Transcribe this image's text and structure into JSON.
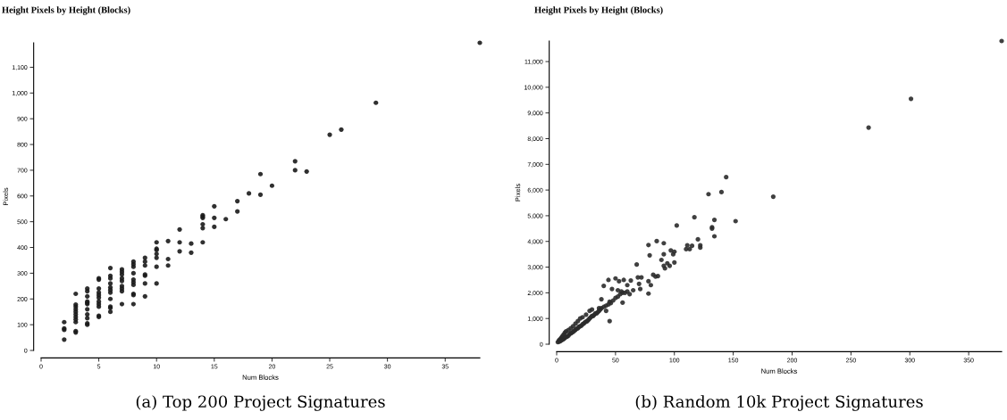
{
  "chart_data": [
    {
      "type": "scatter",
      "title": "Height Pixels by Height (Blocks)",
      "xlabel": "Num Blocks",
      "ylabel": "Pixels",
      "annotations": [
        "(a) Top 200 Project Signatures"
      ],
      "marker": "circle",
      "grid": false,
      "xlim": [
        0,
        38
      ],
      "ylim": [
        0,
        1195
      ],
      "xticks": [
        0,
        5,
        10,
        15,
        20,
        25,
        30,
        35
      ],
      "yticks": [
        0,
        100,
        200,
        300,
        400,
        500,
        600,
        700,
        800,
        900,
        {
          "value": 1000,
          "label": "1,000"
        },
        {
          "value": 1100,
          "label": "1,100"
        }
      ],
      "series": [
        {
          "color": "#1a1a1a",
          "x": [
            2,
            2,
            2,
            2,
            3,
            3,
            3,
            3,
            3,
            3,
            3,
            3,
            3,
            3,
            3,
            4,
            4,
            4,
            4,
            4,
            4,
            4,
            4,
            4,
            4,
            4,
            5,
            5,
            5,
            5,
            5,
            5,
            5,
            5,
            5,
            5,
            5,
            6,
            6,
            6,
            6,
            6,
            6,
            6,
            6,
            6,
            6,
            6,
            7,
            7,
            7,
            7,
            7,
            7,
            7,
            7,
            7,
            8,
            8,
            8,
            8,
            8,
            8,
            8,
            8,
            8,
            8,
            9,
            9,
            9,
            9,
            9,
            9,
            9,
            10,
            10,
            10,
            10,
            10,
            10,
            10,
            11,
            11,
            11,
            12,
            12,
            12,
            13,
            13,
            14,
            14,
            14,
            14,
            14,
            14,
            15,
            15,
            15,
            16,
            17,
            17,
            18,
            19,
            19,
            20,
            22,
            22,
            23,
            25,
            26,
            29,
            38
          ],
          "values": [
            110,
            85,
            80,
            42,
            220,
            178,
            170,
            160,
            150,
            140,
            130,
            120,
            110,
            75,
            70,
            240,
            230,
            210,
            190,
            185,
            180,
            160,
            140,
            125,
            105,
            100,
            280,
            275,
            240,
            225,
            215,
            205,
            190,
            180,
            170,
            135,
            130,
            320,
            290,
            280,
            260,
            245,
            235,
            225,
            200,
            170,
            165,
            150,
            315,
            305,
            295,
            280,
            270,
            250,
            240,
            230,
            180,
            345,
            335,
            325,
            300,
            275,
            265,
            255,
            220,
            215,
            180,
            360,
            345,
            330,
            295,
            290,
            260,
            210,
            420,
            395,
            390,
            375,
            360,
            325,
            260,
            425,
            355,
            330,
            470,
            420,
            385,
            415,
            380,
            525,
            520,
            515,
            490,
            475,
            420,
            560,
            515,
            480,
            510,
            580,
            540,
            610,
            685,
            605,
            640,
            735,
            700,
            695,
            838,
            858,
            962,
            1195
          ]
        }
      ]
    },
    {
      "type": "scatter",
      "title": "Height Pixels by Height (Blocks)",
      "xlabel": "Num Blocks",
      "ylabel": "Pixels",
      "annotations": [
        "(b) Random 10k Project Signatures"
      ],
      "marker": "circle",
      "grid": false,
      "xlim": [
        0,
        378
      ],
      "ylim": [
        0,
        11800
      ],
      "xticks": [
        0,
        50,
        100,
        150,
        200,
        250,
        300,
        350
      ],
      "yticks": [
        0,
        {
          "value": 1000,
          "label": "1,000"
        },
        {
          "value": 2000,
          "label": "2,000"
        },
        {
          "value": 3000,
          "label": "3,000"
        },
        {
          "value": 4000,
          "label": "4,000"
        },
        {
          "value": 5000,
          "label": "5,000"
        },
        {
          "value": 6000,
          "label": "6,000"
        },
        {
          "value": 7000,
          "label": "7,000"
        },
        {
          "value": 8000,
          "label": "8,000"
        },
        {
          "value": 9000,
          "label": "9,000"
        },
        {
          "value": 10000,
          "label": "10,000"
        },
        {
          "value": 11000,
          "label": "11,000"
        }
      ],
      "series": [
        {
          "color": "#2b2b2b",
          "x": [
            1,
            2,
            2,
            3,
            3,
            4,
            4,
            5,
            5,
            6,
            6,
            7,
            7,
            8,
            8,
            9,
            10,
            10,
            11,
            12,
            12,
            13,
            14,
            14,
            15,
            16,
            16,
            17,
            18,
            18,
            19,
            20,
            20,
            21,
            22,
            22,
            23,
            24,
            25,
            25,
            26,
            27,
            28,
            28,
            29,
            30,
            30,
            31,
            32,
            33,
            34,
            35,
            36,
            37,
            38,
            40,
            42,
            44,
            45,
            46,
            48,
            50,
            52,
            54,
            56,
            60,
            62,
            265,
            301,
            378,
            184,
            144,
            129,
            140,
            152,
            134,
            132,
            132,
            134,
            117,
            102,
            120,
            122,
            122,
            111,
            113,
            115,
            110,
            85,
            78,
            91,
            97,
            100,
            99,
            91,
            79,
            100,
            89,
            91,
            92,
            94,
            96,
            68,
            69,
            72,
            82,
            84,
            86,
            78,
            80,
            78,
            71,
            70,
            44,
            40,
            50,
            53,
            57,
            63,
            60,
            38,
            47,
            52,
            55,
            58,
            65,
            56,
            36,
            42,
            45
          ],
          "values": [
            80,
            100,
            150,
            120,
            200,
            150,
            260,
            180,
            320,
            200,
            380,
            250,
            450,
            280,
            500,
            300,
            330,
            550,
            400,
            420,
            620,
            450,
            480,
            700,
            520,
            560,
            800,
            600,
            620,
            900,
            680,
            700,
            1000,
            720,
            780,
            1050,
            800,
            850,
            880,
            1150,
            900,
            950,
            1000,
            1300,
            1050,
            1100,
            1350,
            1100,
            1150,
            1200,
            1200,
            1250,
            1300,
            1350,
            1400,
            1450,
            1500,
            1550,
            1650,
            1600,
            1700,
            1800,
            1850,
            1950,
            2000,
            2050,
            1950,
            8430,
            9550,
            11800,
            5740,
            6500,
            5840,
            5920,
            4790,
            4840,
            4550,
            4500,
            4200,
            4940,
            4620,
            4080,
            3850,
            3760,
            3850,
            3700,
            3830,
            3700,
            4010,
            3860,
            3930,
            3650,
            3600,
            3500,
            3500,
            3460,
            3180,
            3280,
            3050,
            2950,
            3150,
            3050,
            3100,
            2600,
            2600,
            2700,
            2630,
            2650,
            2450,
            2300,
            1970,
            2150,
            2350,
            2500,
            2270,
            2560,
            2450,
            2500,
            2480,
            2300,
            1750,
            2150,
            2100,
            2050,
            2000,
            2100,
            1620,
            1400,
            1300,
            900
          ]
        }
      ]
    }
  ]
}
